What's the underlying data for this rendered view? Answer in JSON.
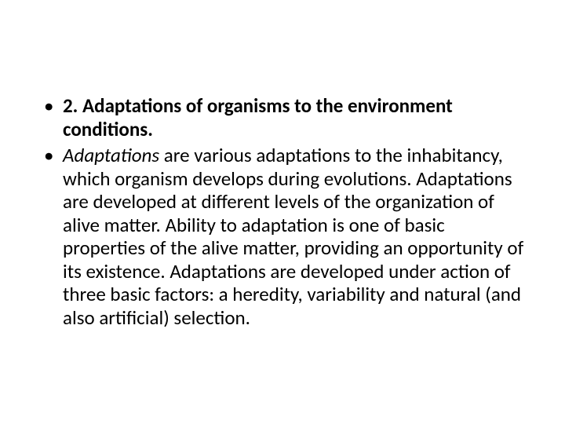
{
  "slide": {
    "background_color": "#ffffff",
    "text_color": "#000000",
    "font_family": "Calibri",
    "bullets": [
      {
        "bold_prefix": "2. Adaptations of organisms to the environment conditions.",
        "rest": ""
      },
      {
        "italic_prefix": "Adaptations",
        "rest": " are various adaptations to the inhabitancy, which organism develops during evolutions. Adaptations are developed at different levels of the organization of alive matter. Ability to adaptation is one of basic properties of the alive matter, providing an opportunity of its existence. Adaptations are developed under action of three basic factors: a heredity, variability and natural (and also artificial) selection."
      }
    ]
  }
}
